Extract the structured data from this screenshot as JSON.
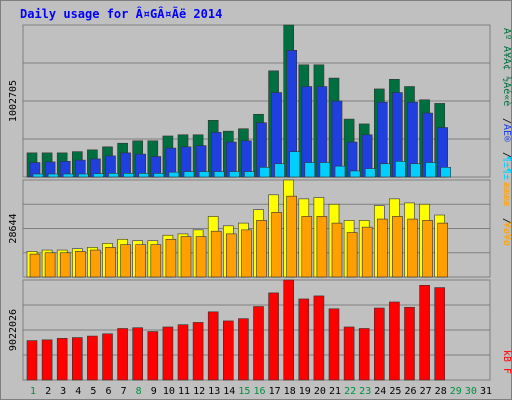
{
  "title": "Daily usage for Â¤GÂ¤Ãë 2014",
  "chart_data": [
    {
      "type": "bar",
      "categories": [
        "1",
        "2",
        "3",
        "4",
        "5",
        "6",
        "7",
        "8",
        "9",
        "10",
        "11",
        "12",
        "13",
        "14",
        "15",
        "16",
        "17",
        "18",
        "19",
        "20",
        "21",
        "22",
        "23",
        "24",
        "25",
        "26",
        "27",
        "28",
        "29",
        "30",
        "31"
      ],
      "y_tick_label": "1002705",
      "ymax": 1260000,
      "series": [
        {
          "color": "#006f3f",
          "values": [
            200000,
            200000,
            200000,
            210000,
            225000,
            250000,
            280000,
            300000,
            300000,
            340000,
            350000,
            350000,
            470000,
            380000,
            400000,
            520000,
            880000,
            1260000,
            930000,
            930000,
            820000,
            480000,
            440000,
            730000,
            810000,
            750000,
            640000,
            610000,
            0,
            0,
            0
          ]
        },
        {
          "color": "#1f3fdf",
          "values": [
            120000,
            125000,
            130000,
            140000,
            150000,
            175000,
            200000,
            190000,
            170000,
            240000,
            250000,
            260000,
            370000,
            290000,
            300000,
            450000,
            700000,
            1050000,
            750000,
            750000,
            630000,
            290000,
            350000,
            620000,
            700000,
            620000,
            530000,
            410000,
            0,
            0,
            0
          ]
        },
        {
          "color": "#00cfff",
          "values": [
            25000,
            25000,
            25000,
            25000,
            28000,
            30000,
            30000,
            30000,
            30000,
            40000,
            45000,
            45000,
            45000,
            45000,
            45000,
            80000,
            110000,
            210000,
            120000,
            120000,
            90000,
            50000,
            70000,
            110000,
            130000,
            110000,
            120000,
            80000,
            0,
            0,
            0
          ]
        }
      ]
    },
    {
      "type": "bar",
      "y_tick_label": "28644",
      "ymax": 36000,
      "series": [
        {
          "color": "#ffff00",
          "values": [
            9500,
            10000,
            10000,
            10500,
            11000,
            12500,
            14000,
            13500,
            13500,
            15500,
            16000,
            17500,
            22500,
            19000,
            20000,
            25000,
            30500,
            36000,
            29000,
            29500,
            27000,
            21000,
            21000,
            26500,
            29000,
            27500,
            27000,
            23000,
            0,
            0,
            0
          ]
        },
        {
          "color": "#ffa000",
          "values": [
            8500,
            9000,
            9000,
            9500,
            10000,
            11000,
            12000,
            12000,
            12000,
            14000,
            15000,
            15000,
            17000,
            16000,
            17500,
            21000,
            24000,
            30000,
            22500,
            22500,
            20000,
            16500,
            18500,
            21500,
            22500,
            21500,
            21000,
            20000,
            0,
            0,
            0
          ]
        }
      ]
    },
    {
      "type": "bar",
      "y_tick_label": "9022026",
      "ymax": 13200000,
      "series": [
        {
          "color": "#ff0000",
          "values": [
            5200000,
            5300000,
            5500000,
            5600000,
            5800000,
            6100000,
            6800000,
            6900000,
            6400000,
            7000000,
            7300000,
            7600000,
            9000000,
            7800000,
            8100000,
            9700000,
            11500000,
            13200000,
            10700000,
            11100000,
            9400000,
            7000000,
            6800000,
            9500000,
            10300000,
            9600000,
            12500000,
            12200000,
            0,
            0,
            0
          ]
        }
      ]
    }
  ],
  "legend": [
    {
      "text": "Âº Ã¥Ã¢ ½Ãé«è",
      "color": "#006f3f"
    },
    {
      "text": "/",
      "color": "#000000"
    },
    {
      "text": "ÀÉ®",
      "color": "#1f3fdf"
    },
    {
      "text": "/",
      "color": "#000000"
    },
    {
      "text": "¶±¶±",
      "color": "#00cfff"
    },
    {
      "text": "ææææ",
      "color": "#ffa000"
    },
    {
      "text": "/",
      "color": "#000000"
    },
    {
      "text": "¥ø¥ø",
      "color": "#ffa000"
    },
    {
      "text": "kB F",
      "color": "#ff0000"
    }
  ],
  "colors": {
    "frame": "#c0c0c0",
    "gridline": "#7f7f7f",
    "axis_label": "#000000",
    "weekend_label": "#008f3f"
  }
}
